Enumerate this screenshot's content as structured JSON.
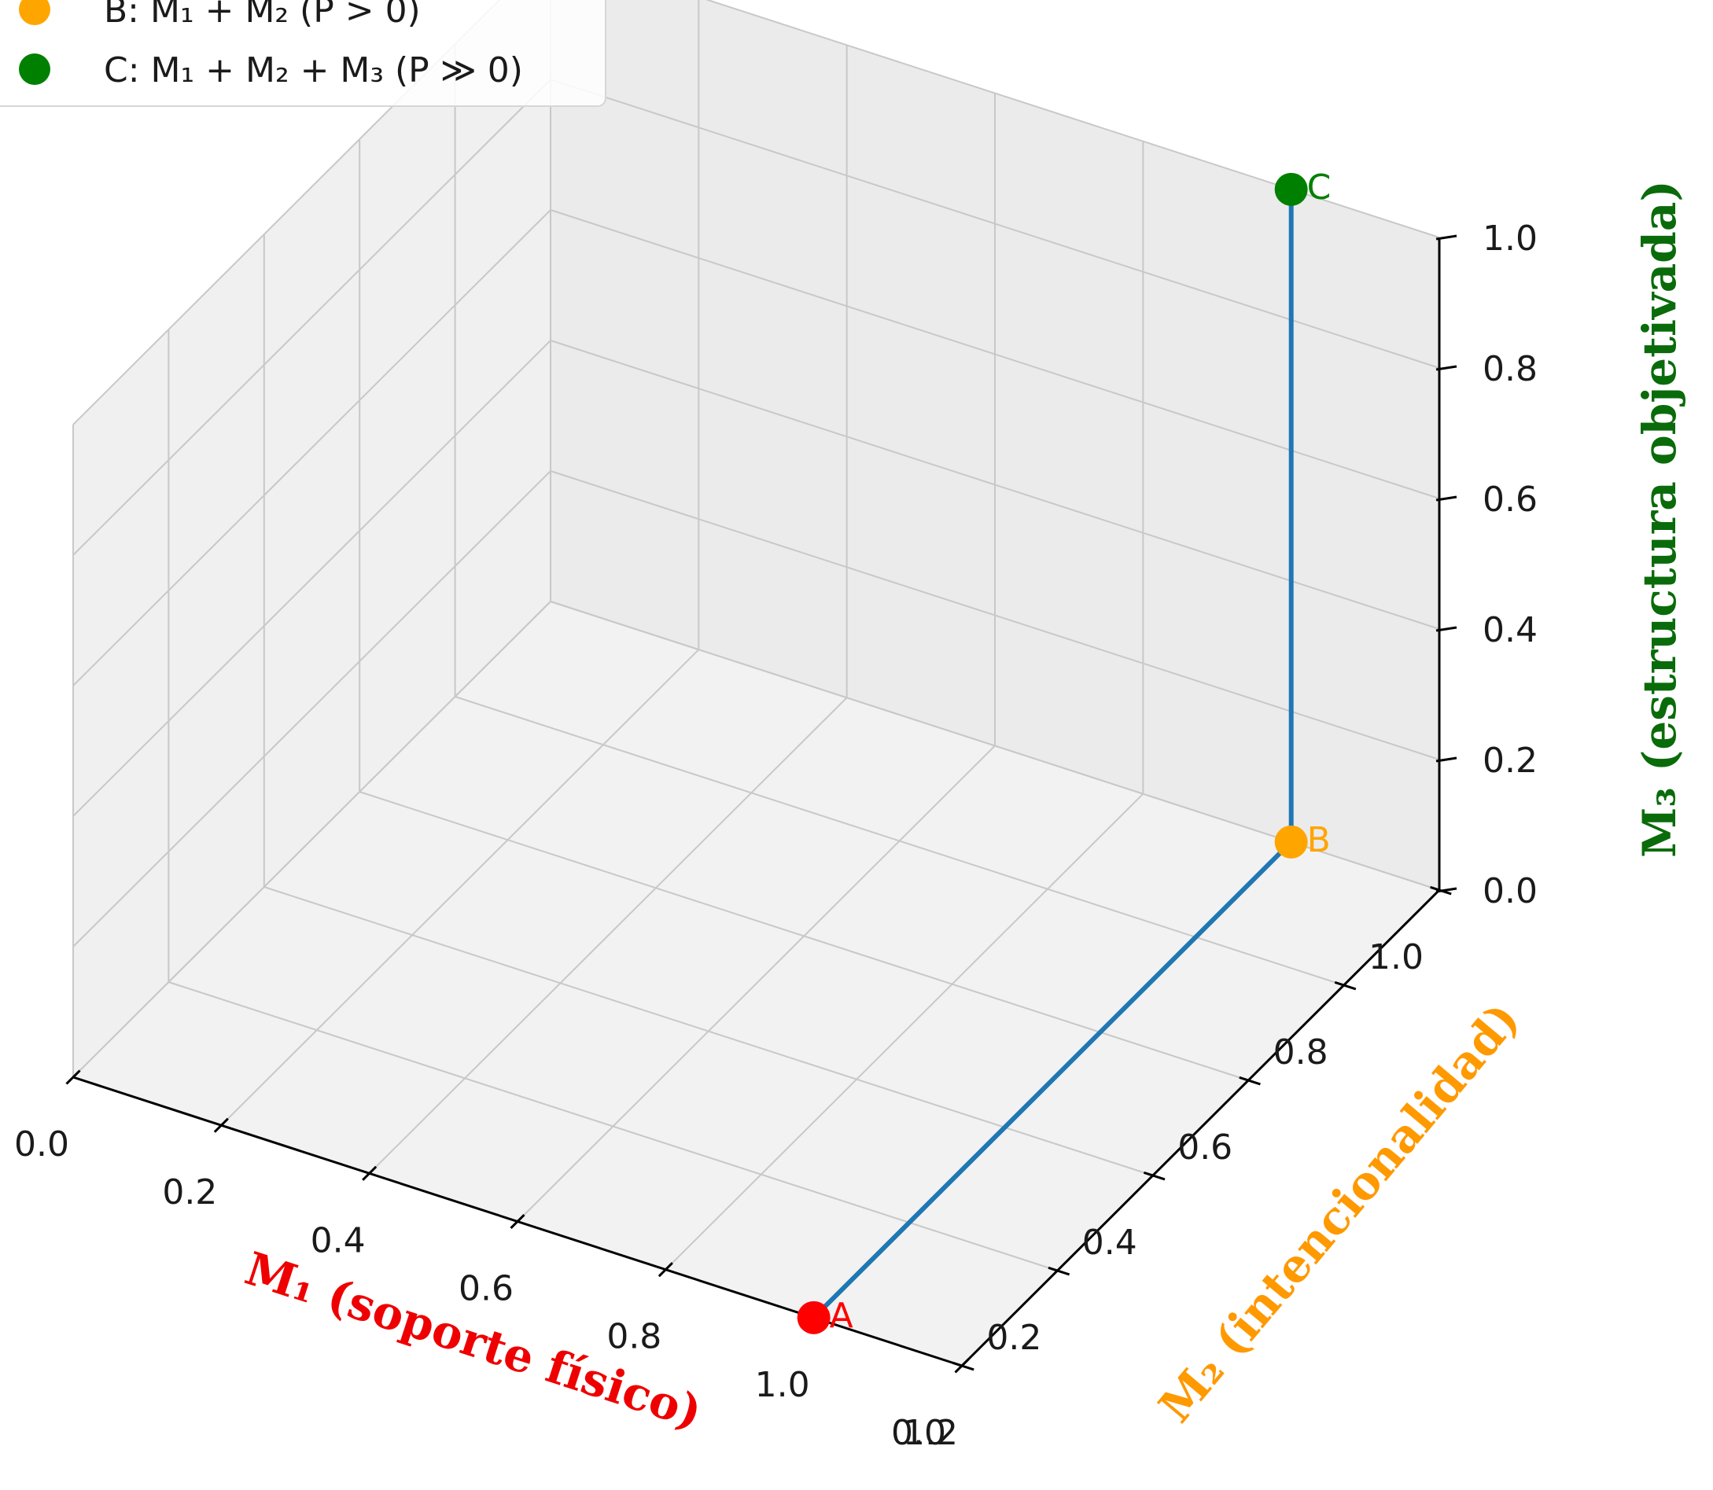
{
  "chart_data": {
    "type": "scatter3d",
    "title": "",
    "xlabel": "M₁ (soporte físico)",
    "ylabel": "M₂ (intencionalidad)",
    "zlabel": "M₃ (estructura objetivada)",
    "xlim": [
      0.0,
      1.2
    ],
    "ylim": [
      0.0,
      1.0
    ],
    "zlim": [
      0.0,
      1.0
    ],
    "x_ticks": [
      "0.0",
      "0.2",
      "0.4",
      "0.6",
      "0.8",
      "1.0",
      "1.2"
    ],
    "y_ticks": [
      "0.0",
      "0.2",
      "0.4",
      "0.6",
      "0.8",
      "1.0"
    ],
    "z_ticks": [
      "0.0",
      "0.2",
      "0.4",
      "0.6",
      "0.8",
      "1.0"
    ],
    "grid": true,
    "legend_position": "top-left",
    "legend": [
      {
        "label": "B: M₁ + M₂ (P > 0)",
        "color": "#ffa500"
      },
      {
        "label": "C: M₁ + M₂ + M₃ (P ≫ 0)",
        "color": "#008000"
      }
    ],
    "path_color": "#1f77b4",
    "points": [
      {
        "name": "A",
        "x": 1.0,
        "y": 0.0,
        "z": 0.0,
        "color": "#ff0000"
      },
      {
        "name": "B",
        "x": 1.0,
        "y": 1.0,
        "z": 0.0,
        "color": "#ffa500"
      },
      {
        "name": "C",
        "x": 1.0,
        "y": 1.0,
        "z": 1.0,
        "color": "#008000"
      }
    ],
    "axis_label_colors": {
      "x": "#ee0000",
      "y": "#ff9900",
      "z": "#0a6b0a"
    }
  }
}
